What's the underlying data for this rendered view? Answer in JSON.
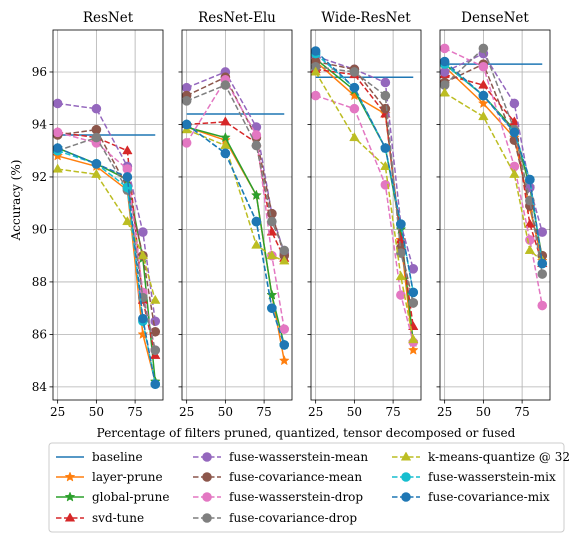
{
  "figure": {
    "ylabel": "Accuracy (%)",
    "xlabel": "Percentage of filters pruned, quantized, tensor decomposed or fused"
  },
  "chart_data": [
    {
      "type": "line",
      "title": "ResNet",
      "xlim": [
        22,
        93
      ],
      "ylim": [
        83.5,
        97.6
      ],
      "xticks": [
        25,
        50,
        75
      ],
      "yticks": [
        84,
        86,
        88,
        90,
        92,
        94,
        96
      ],
      "grid": true,
      "series": [
        {
          "name": "baseline",
          "x": [
            25,
            88
          ],
          "y": [
            93.6,
            93.6
          ]
        },
        {
          "name": "layer-prune",
          "x": [
            25,
            50,
            70,
            80,
            88
          ],
          "y": [
            92.8,
            92.4,
            91.5,
            86.0,
            84.2
          ]
        },
        {
          "name": "global-prune",
          "x": [
            25,
            50,
            70,
            80,
            88
          ],
          "y": [
            93.1,
            92.5,
            91.9,
            88.9,
            84.2
          ]
        },
        {
          "name": "svd-tune",
          "x": [
            25,
            50,
            70,
            80,
            88
          ],
          "y": [
            93.7,
            93.5,
            93.0,
            87.3,
            85.2
          ]
        },
        {
          "name": "fuse-wasserstein-mean",
          "x": [
            25,
            50,
            70,
            80,
            88
          ],
          "y": [
            94.8,
            94.6,
            92.4,
            89.9,
            86.5
          ]
        },
        {
          "name": "fuse-covariance-mean",
          "x": [
            25,
            50,
            70,
            80,
            88
          ],
          "y": [
            93.6,
            93.8,
            91.6,
            89.0,
            86.1
          ]
        },
        {
          "name": "fuse-wasserstein-drop",
          "x": [
            25,
            50,
            70,
            80,
            88
          ],
          "y": [
            93.7,
            93.3,
            92.3,
            87.6,
            85.4
          ]
        },
        {
          "name": "fuse-covariance-drop",
          "x": [
            25,
            50,
            70,
            80,
            88
          ],
          "y": [
            93.0,
            93.5,
            91.5,
            87.4,
            85.4
          ]
        },
        {
          "name": "k-means-quantize @ 32",
          "x": [
            25,
            50,
            70,
            80,
            88
          ],
          "y": [
            92.3,
            92.1,
            90.3,
            89.0,
            87.3
          ]
        },
        {
          "name": "fuse-wasserstein-mix",
          "x": [
            25,
            50,
            70,
            80,
            88
          ],
          "y": [
            93.0,
            92.5,
            91.6,
            86.5,
            84.1
          ]
        },
        {
          "name": "fuse-covariance-mix",
          "x": [
            25,
            50,
            70,
            80,
            88
          ],
          "y": [
            93.1,
            92.5,
            92.0,
            86.6,
            84.1
          ]
        }
      ]
    },
    {
      "type": "line",
      "title": "ResNet-Elu",
      "xlim": [
        22,
        93
      ],
      "ylim": [
        83.5,
        97.6
      ],
      "xticks": [
        25,
        50,
        75
      ],
      "yticks": [
        84,
        86,
        88,
        90,
        92,
        94,
        96
      ],
      "grid": true,
      "series": [
        {
          "name": "baseline",
          "x": [
            25,
            88
          ],
          "y": [
            94.4,
            94.4
          ]
        },
        {
          "name": "layer-prune",
          "x": [
            25,
            50,
            70,
            80,
            88
          ],
          "y": [
            93.9,
            93.4,
            91.3,
            87.5,
            85.0
          ]
        },
        {
          "name": "global-prune",
          "x": [
            25,
            50,
            70,
            80,
            88
          ],
          "y": [
            93.9,
            93.5,
            91.3,
            87.5,
            85.6
          ]
        },
        {
          "name": "svd-tune",
          "x": [
            25,
            50,
            70,
            80,
            88
          ],
          "y": [
            94.0,
            94.1,
            93.3,
            89.9,
            88.9
          ]
        },
        {
          "name": "fuse-wasserstein-mean",
          "x": [
            25,
            50,
            70,
            80,
            88
          ],
          "y": [
            95.4,
            96.0,
            93.9,
            90.6,
            89.1
          ]
        },
        {
          "name": "fuse-covariance-mean",
          "x": [
            25,
            50,
            70,
            80,
            88
          ],
          "y": [
            95.1,
            95.8,
            93.5,
            90.6,
            89.0
          ]
        },
        {
          "name": "fuse-wasserstein-drop",
          "x": [
            25,
            50,
            70,
            80,
            88
          ],
          "y": [
            93.3,
            95.7,
            93.6,
            89.0,
            86.2
          ]
        },
        {
          "name": "fuse-covariance-drop",
          "x": [
            25,
            50,
            70,
            80,
            88
          ],
          "y": [
            94.9,
            95.5,
            93.2,
            90.3,
            89.2
          ]
        },
        {
          "name": "k-means-quantize @ 32",
          "x": [
            25,
            50,
            70,
            80,
            88
          ],
          "y": [
            93.8,
            93.2,
            89.4,
            89.0,
            88.8
          ]
        },
        {
          "name": "fuse-wasserstein-mix",
          "x": [
            25,
            50,
            70,
            80,
            88
          ],
          "y": [
            94.0,
            92.9,
            90.3,
            87.0,
            85.6
          ]
        },
        {
          "name": "fuse-covariance-mix",
          "x": [
            25,
            50,
            70,
            80,
            88
          ],
          "y": [
            94.0,
            92.9,
            90.3,
            87.0,
            85.6
          ]
        }
      ]
    },
    {
      "type": "line",
      "title": "Wide-ResNet",
      "xlim": [
        22,
        93
      ],
      "ylim": [
        83.5,
        97.6
      ],
      "xticks": [
        25,
        50,
        75
      ],
      "yticks": [
        84,
        86,
        88,
        90,
        92,
        94,
        96
      ],
      "grid": true,
      "series": [
        {
          "name": "baseline",
          "x": [
            25,
            88
          ],
          "y": [
            95.8,
            95.8
          ]
        },
        {
          "name": "layer-prune",
          "x": [
            25,
            50,
            70,
            80,
            88
          ],
          "y": [
            96.4,
            95.1,
            94.4,
            89.6,
            85.4
          ]
        },
        {
          "name": "global-prune",
          "x": [
            25,
            50,
            70,
            80,
            88
          ],
          "y": [
            96.5,
            95.3,
            93.1,
            90.0,
            85.7
          ]
        },
        {
          "name": "svd-tune",
          "x": [
            25,
            50,
            70,
            80,
            88
          ],
          "y": [
            96.1,
            95.9,
            94.4,
            89.6,
            86.3
          ]
        },
        {
          "name": "fuse-wasserstein-mean",
          "x": [
            25,
            50,
            70,
            80,
            88
          ],
          "y": [
            96.6,
            96.1,
            95.6,
            90.2,
            88.5
          ]
        },
        {
          "name": "fuse-covariance-mean",
          "x": [
            25,
            50,
            70,
            80,
            88
          ],
          "y": [
            96.4,
            96.1,
            94.6,
            89.3,
            87.2
          ]
        },
        {
          "name": "fuse-wasserstein-drop",
          "x": [
            25,
            50,
            70,
            80,
            88
          ],
          "y": [
            95.1,
            94.6,
            91.7,
            87.5,
            85.7
          ]
        },
        {
          "name": "fuse-covariance-drop",
          "x": [
            25,
            50,
            70,
            80,
            88
          ],
          "y": [
            96.2,
            96.0,
            95.1,
            89.1,
            87.2
          ]
        },
        {
          "name": "k-means-quantize @ 32",
          "x": [
            25,
            50,
            70,
            80,
            88
          ],
          "y": [
            96.0,
            93.5,
            92.4,
            88.2,
            85.8
          ]
        },
        {
          "name": "fuse-wasserstein-mix",
          "x": [
            25,
            50,
            70,
            80,
            88
          ],
          "y": [
            96.7,
            95.4,
            93.1,
            90.2,
            87.6
          ]
        },
        {
          "name": "fuse-covariance-mix",
          "x": [
            25,
            50,
            70,
            80,
            88
          ],
          "y": [
            96.8,
            95.4,
            93.1,
            90.2,
            87.6
          ]
        }
      ]
    },
    {
      "type": "line",
      "title": "DenseNet",
      "xlim": [
        22,
        93
      ],
      "ylim": [
        83.5,
        97.6
      ],
      "xticks": [
        25,
        50,
        75
      ],
      "yticks": [
        84,
        86,
        88,
        90,
        92,
        94,
        96
      ],
      "grid": true,
      "series": [
        {
          "name": "baseline",
          "x": [
            25,
            88
          ],
          "y": [
            96.3,
            96.3
          ]
        },
        {
          "name": "layer-prune",
          "x": [
            25,
            50,
            70,
            80,
            88
          ],
          "y": [
            96.2,
            94.8,
            93.5,
            90.8,
            88.8
          ]
        },
        {
          "name": "global-prune",
          "x": [
            25,
            50,
            70,
            80,
            88
          ],
          "y": [
            96.3,
            95.1,
            93.8,
            91.6,
            88.9
          ]
        },
        {
          "name": "svd-tune",
          "x": [
            25,
            50,
            70,
            80,
            88
          ],
          "y": [
            95.9,
            95.5,
            94.1,
            90.2,
            88.7
          ]
        },
        {
          "name": "fuse-wasserstein-mean",
          "x": [
            25,
            50,
            70,
            80,
            88
          ],
          "y": [
            96.0,
            96.7,
            94.8,
            91.6,
            89.9
          ]
        },
        {
          "name": "fuse-covariance-mean",
          "x": [
            25,
            50,
            70,
            80,
            88
          ],
          "y": [
            95.6,
            96.3,
            93.4,
            90.9,
            89.0
          ]
        },
        {
          "name": "fuse-wasserstein-drop",
          "x": [
            25,
            50,
            70,
            80,
            88
          ],
          "y": [
            96.9,
            96.2,
            92.4,
            89.6,
            87.1
          ]
        },
        {
          "name": "fuse-covariance-drop",
          "x": [
            25,
            50,
            70,
            80,
            88
          ],
          "y": [
            95.5,
            96.9,
            93.8,
            91.1,
            88.3
          ]
        },
        {
          "name": "k-means-quantize @ 32",
          "x": [
            25,
            50,
            70,
            80,
            88
          ],
          "y": [
            95.2,
            94.3,
            92.1,
            89.2,
            88.8
          ]
        },
        {
          "name": "fuse-wasserstein-mix",
          "x": [
            25,
            50,
            70,
            80,
            88
          ],
          "y": [
            96.3,
            95.1,
            93.7,
            91.9,
            88.7
          ]
        },
        {
          "name": "fuse-covariance-mix",
          "x": [
            25,
            50,
            70,
            80,
            88
          ],
          "y": [
            96.4,
            95.1,
            93.7,
            91.9,
            88.7
          ]
        }
      ]
    }
  ],
  "legend": {
    "placement": "bottom",
    "items": [
      {
        "name": "baseline",
        "color": "#1f77b4",
        "dash": "solid",
        "marker": "none"
      },
      {
        "name": "layer-prune",
        "color": "#ff7f0e",
        "dash": "solid",
        "marker": "star"
      },
      {
        "name": "global-prune",
        "color": "#2ca02c",
        "dash": "solid",
        "marker": "star"
      },
      {
        "name": "svd-tune",
        "color": "#d62728",
        "dash": "dashed",
        "marker": "triangle"
      },
      {
        "name": "fuse-wasserstein-mean",
        "color": "#9467bd",
        "dash": "dashed",
        "marker": "circle"
      },
      {
        "name": "fuse-covariance-mean",
        "color": "#8c564b",
        "dash": "dashed",
        "marker": "circle"
      },
      {
        "name": "fuse-wasserstein-drop",
        "color": "#e377c2",
        "dash": "dashed",
        "marker": "circle"
      },
      {
        "name": "fuse-covariance-drop",
        "color": "#7f7f7f",
        "dash": "dashed",
        "marker": "circle"
      },
      {
        "name": "k-means-quantize @ 32",
        "color": "#bcbd22",
        "dash": "dashed",
        "marker": "triangle"
      },
      {
        "name": "fuse-wasserstein-mix",
        "color": "#17becf",
        "dash": "dashed",
        "marker": "circle"
      },
      {
        "name": "fuse-covariance-mix",
        "color": "#1f77b4",
        "dash": "dashed",
        "marker": "circle"
      }
    ]
  }
}
